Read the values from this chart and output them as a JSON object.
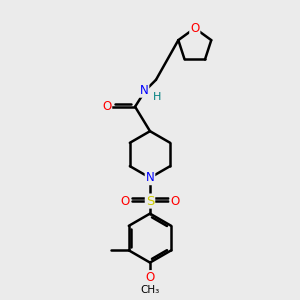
{
  "bg_color": "#ebebeb",
  "bond_color": "#000000",
  "N_color": "#0000ff",
  "O_color": "#ff0000",
  "S_color": "#cccc00",
  "NH_color": "#008080",
  "line_width": 1.8,
  "font_size": 8.5,
  "fig_size": [
    3.0,
    3.0
  ],
  "dpi": 100,
  "xlim": [
    0,
    10
  ],
  "ylim": [
    0,
    10
  ]
}
